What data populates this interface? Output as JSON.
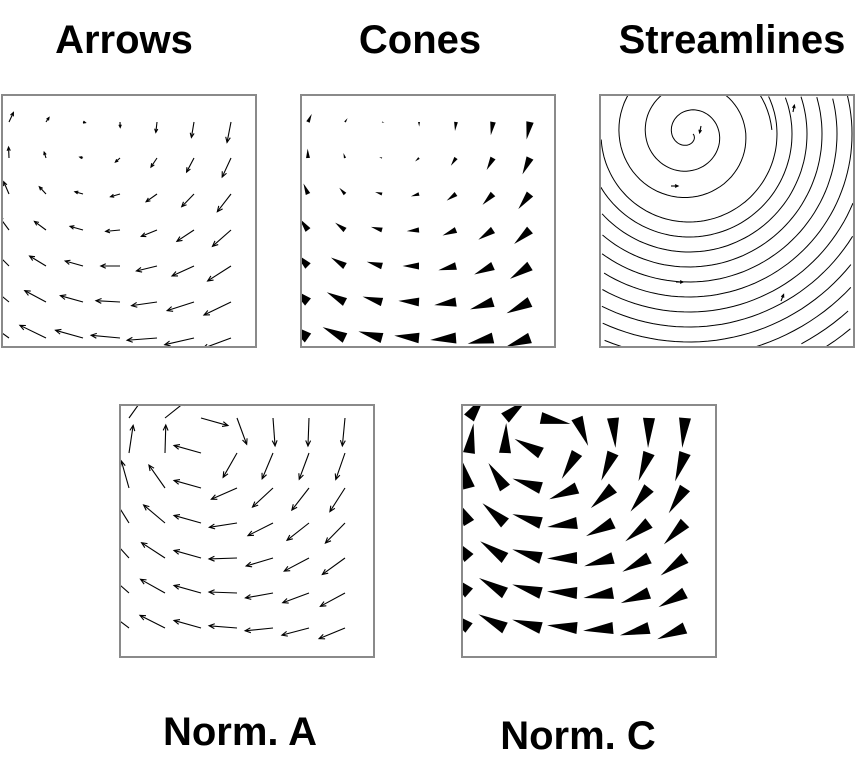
{
  "panels": {
    "arrows": {
      "title": "Arrows"
    },
    "cones": {
      "title": "Cones"
    },
    "streamlines": {
      "title": "Streamlines"
    },
    "norm_a": {
      "title": "Norm. A"
    },
    "norm_c": {
      "title": "Norm. C"
    }
  },
  "colors": {
    "glyph": "#000000",
    "frame": "#8a8a8a",
    "background": "#ffffff"
  }
}
